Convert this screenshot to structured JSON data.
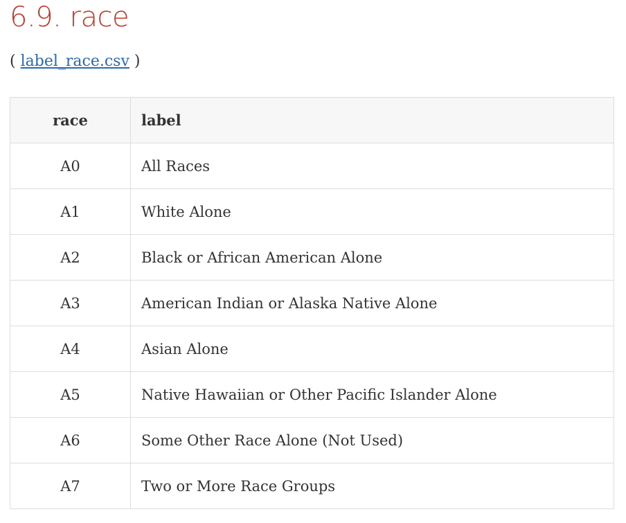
{
  "title": "6.9. race",
  "source": {
    "open": "(",
    "link": "label_race.csv",
    "close": ")"
  },
  "table": {
    "headers": [
      "race",
      "label"
    ],
    "rows": [
      [
        "A0",
        "All Races"
      ],
      [
        "A1",
        "White Alone"
      ],
      [
        "A2",
        "Black or African American Alone"
      ],
      [
        "A3",
        "American Indian or Alaska Native Alone"
      ],
      [
        "A4",
        "Asian Alone"
      ],
      [
        "A5",
        "Native Hawaiian or Other Pacific Islander Alone"
      ],
      [
        "A6",
        "Some Other Race Alone (Not Used)"
      ],
      [
        "A7",
        "Two or More Race Groups"
      ]
    ]
  },
  "colors": {
    "title": "#c0392b",
    "link": "#2969b0"
  }
}
